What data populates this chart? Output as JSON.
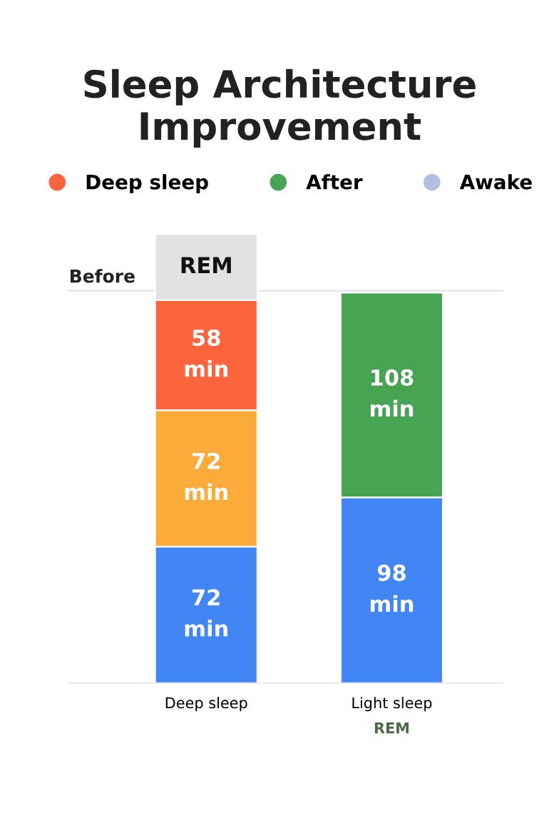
{
  "chart_data": {
    "type": "bar",
    "title": "Sleep Architecture Improvement",
    "stacked": true,
    "categories": [
      "Deep sleep",
      "Light sleep"
    ],
    "series": [
      {
        "color": "#4285f4",
        "values": [
          72,
          98
        ],
        "value_labels": [
          "72\nmin",
          "98\nmin"
        ]
      },
      {
        "color": "#fbab3a",
        "values": [
          72,
          null
        ],
        "value_labels": [
          "72\nmin",
          null
        ]
      },
      {
        "name": "Deep sleep",
        "color": "#fc643e",
        "values": [
          58,
          null
        ],
        "value_labels": [
          "58\nmin",
          null
        ]
      },
      {
        "name": "After",
        "color": "#47a453",
        "values": [
          null,
          108
        ],
        "value_labels": [
          null,
          "108\nmin"
        ]
      },
      {
        "color": "#e2e2e4",
        "values": [
          35,
          null
        ],
        "value_labels": [
          "REM",
          null
        ]
      },
      {
        "name": "Awake",
        "color": "#b1bfe2",
        "values": [
          null,
          null
        ]
      }
    ],
    "ref_lines": [
      {
        "axis": "y",
        "value": 207,
        "label": "Before",
        "color": "#dddde3"
      }
    ],
    "annotations": [
      "REM"
    ],
    "legend": "top",
    "grid": false
  }
}
